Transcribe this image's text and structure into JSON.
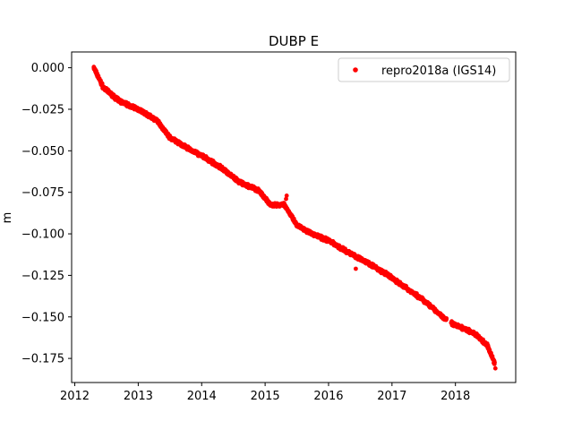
{
  "chart_data": {
    "type": "scatter",
    "title": "DUBP E",
    "xlabel": "",
    "ylabel": "m",
    "xlim": [
      2011.95,
      2018.95
    ],
    "ylim": [
      -0.1895,
      0.0095
    ],
    "xticks": [
      2012,
      2013,
      2014,
      2015,
      2016,
      2017,
      2018
    ],
    "xtick_labels": [
      "2012",
      "2013",
      "2014",
      "2015",
      "2016",
      "2017",
      "2018"
    ],
    "yticks": [
      0.0,
      -0.025,
      -0.05,
      -0.075,
      -0.1,
      -0.125,
      -0.15,
      -0.175
    ],
    "ytick_labels": [
      "0.000",
      "−0.025",
      "−0.050",
      "−0.075",
      "−0.100",
      "−0.125",
      "−0.150",
      "−0.175"
    ],
    "grid": false,
    "legend_position": "top-right",
    "series": [
      {
        "name": "repro2018a (IGS14)",
        "color": "#ff0000",
        "marker": "circle",
        "trend_knots": [
          [
            2012.3,
            0.0
          ],
          [
            2012.45,
            -0.012
          ],
          [
            2012.7,
            -0.02
          ],
          [
            2013.0,
            -0.025
          ],
          [
            2013.3,
            -0.032
          ],
          [
            2013.5,
            -0.042
          ],
          [
            2013.8,
            -0.049
          ],
          [
            2014.0,
            -0.053
          ],
          [
            2014.3,
            -0.06
          ],
          [
            2014.6,
            -0.069
          ],
          [
            2014.9,
            -0.074
          ],
          [
            2015.1,
            -0.083
          ],
          [
            2015.3,
            -0.082
          ],
          [
            2015.5,
            -0.095
          ],
          [
            2015.8,
            -0.101
          ],
          [
            2016.0,
            -0.104
          ],
          [
            2016.3,
            -0.111
          ],
          [
            2016.6,
            -0.117
          ],
          [
            2016.9,
            -0.124
          ],
          [
            2017.2,
            -0.132
          ],
          [
            2017.5,
            -0.14
          ],
          [
            2017.8,
            -0.15
          ],
          [
            2017.95,
            -0.154
          ],
          [
            2018.0,
            -0.155
          ],
          [
            2018.3,
            -0.16
          ],
          [
            2018.5,
            -0.167
          ],
          [
            2018.62,
            -0.178
          ]
        ],
        "daily_step_years": 0.0027,
        "noise_amplitude_m": 0.0013,
        "feature_points": [
          [
            2015.34,
            -0.077
          ],
          [
            2015.33,
            -0.079
          ],
          [
            2016.43,
            -0.121
          ],
          [
            2012.3,
            0.0005
          ],
          [
            2018.63,
            -0.181
          ]
        ]
      }
    ]
  }
}
